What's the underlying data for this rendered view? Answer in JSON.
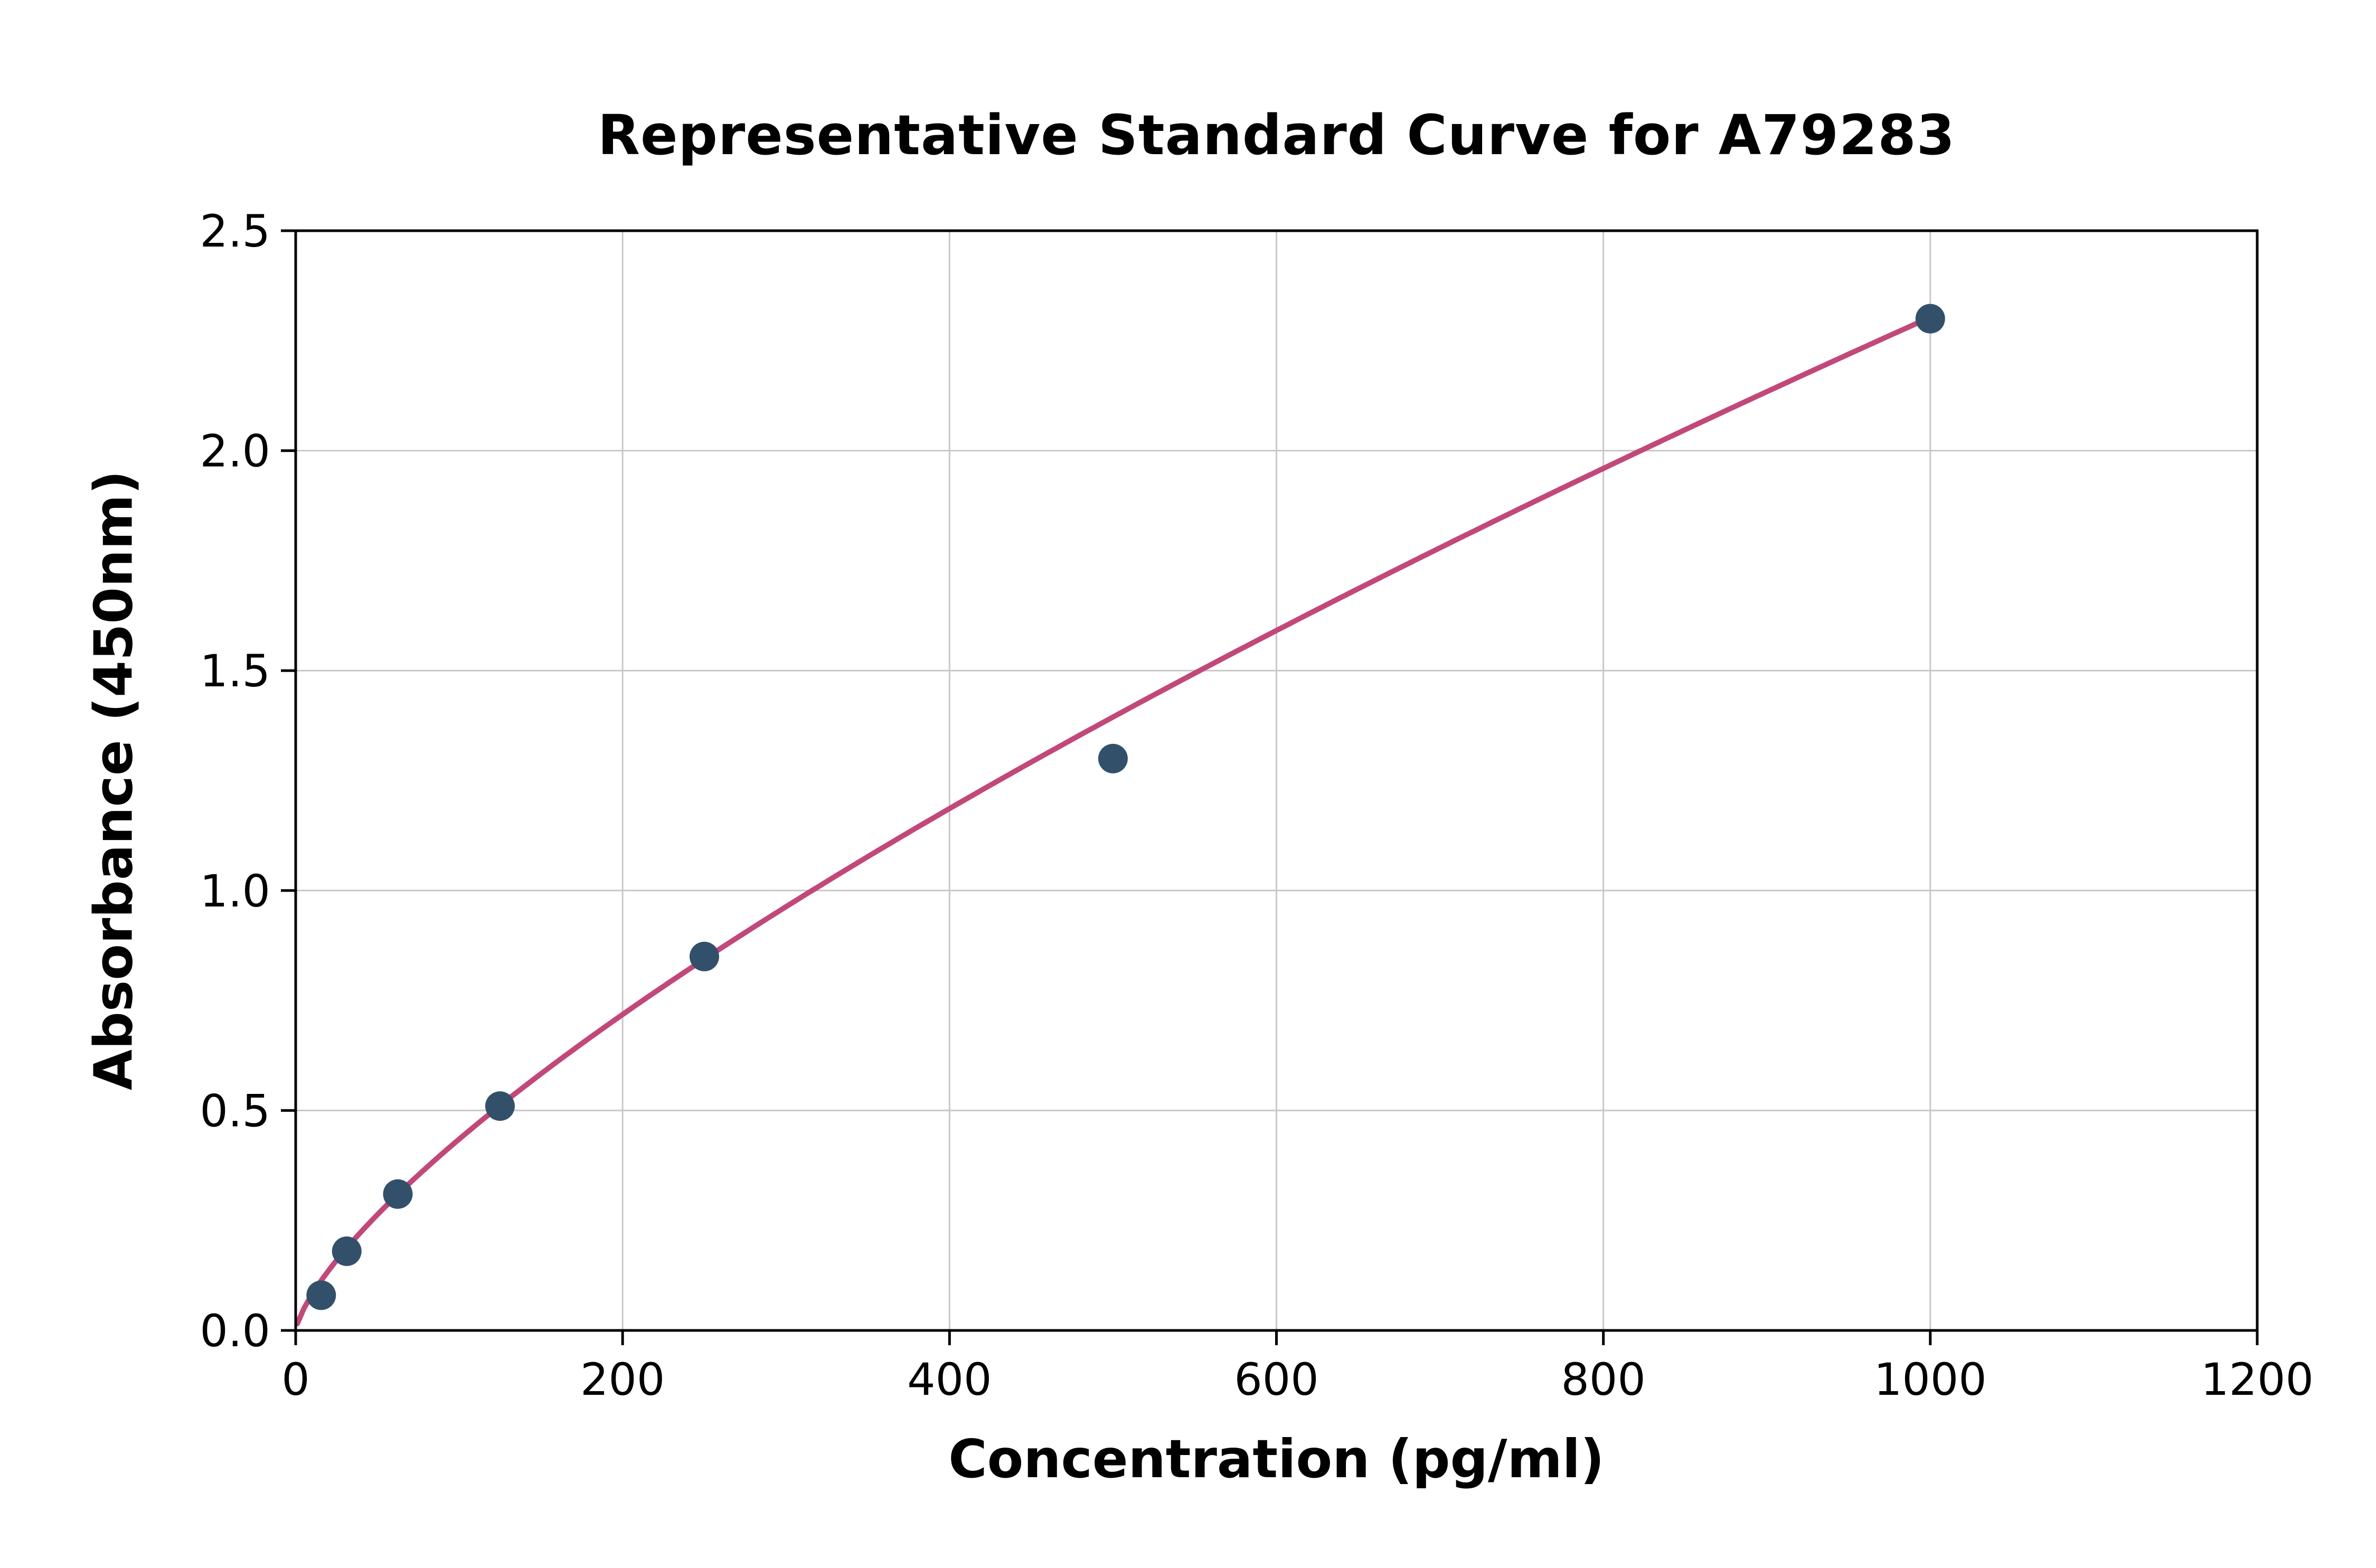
{
  "chart_data": {
    "type": "scatter",
    "title": "Representative Standard Curve for A79283",
    "xlabel": "Concentration (pg/ml)",
    "ylabel": "Absorbance (450nm)",
    "xlim": [
      0,
      1200
    ],
    "ylim": [
      0,
      2.5
    ],
    "x_ticks": [
      0,
      200,
      400,
      600,
      800,
      1000,
      1200
    ],
    "x_tick_labels": [
      "0",
      "200",
      "400",
      "600",
      "800",
      "1000",
      "1200"
    ],
    "y_ticks": [
      0,
      0.5,
      1.0,
      1.5,
      2.0,
      2.5
    ],
    "y_tick_labels": [
      "0.0",
      "0.5",
      "1.0",
      "1.5",
      "2.0",
      "2.5"
    ],
    "grid": true,
    "legend": "none",
    "points": {
      "x": [
        15.6,
        31.25,
        62.5,
        125,
        250,
        500,
        1000
      ],
      "y": [
        0.08,
        0.18,
        0.31,
        0.51,
        0.85,
        1.3,
        2.3
      ]
    },
    "fit_curve": {
      "type": "power",
      "a": 0.0155,
      "b": 0.724,
      "x_start": 1,
      "x_end": 1000
    },
    "colors": {
      "points": "#33506b",
      "curve": "#c2487a",
      "grid": "#c8c8c8",
      "axis": "#000000",
      "background": "#ffffff"
    }
  }
}
